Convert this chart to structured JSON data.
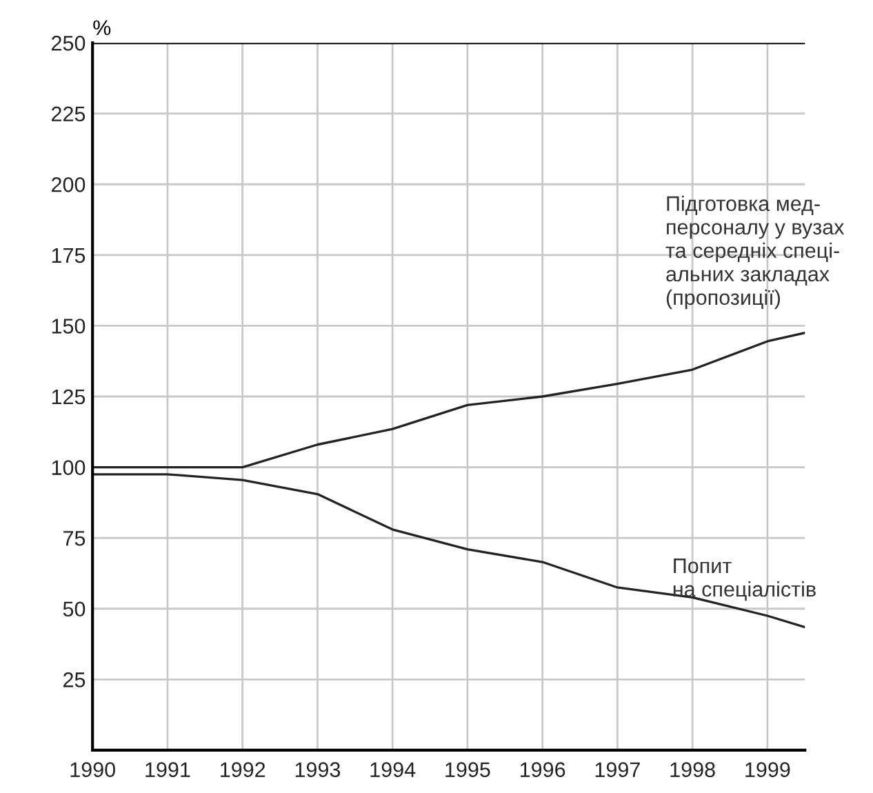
{
  "chart_data": {
    "type": "line",
    "ylabel": "%",
    "x": [
      1990,
      1991,
      1992,
      1993,
      1994,
      1995,
      1996,
      1997,
      1998,
      1999,
      1999.5
    ],
    "series": [
      {
        "name": "Підготовка мед-\nперсоналу у вузах\nта середніх спеці-\nальних закладах\n(пропозиції)",
        "color": "#222222",
        "values": [
          100,
          100,
          100,
          108,
          113.5,
          122,
          125,
          129.5,
          134.5,
          144.5,
          147.5
        ]
      },
      {
        "name": "Попит\nна спеціалістів",
        "color": "#222222",
        "values": [
          97.5,
          97.5,
          95.5,
          90.5,
          78,
          71,
          66.5,
          57.5,
          54,
          47.5,
          43.5
        ]
      }
    ],
    "xlim": [
      1990,
      1999.5
    ],
    "ylim": [
      0,
      250
    ],
    "xticks": [
      1990,
      1991,
      1992,
      1993,
      1994,
      1995,
      1996,
      1997,
      1998,
      1999
    ],
    "yticks": [
      {
        "value": 0,
        "label": null
      },
      25,
      50,
      75,
      100,
      125,
      150,
      175,
      200,
      225,
      250
    ],
    "grid": true,
    "legend": false,
    "marker": "none",
    "line_style": "solid"
  }
}
